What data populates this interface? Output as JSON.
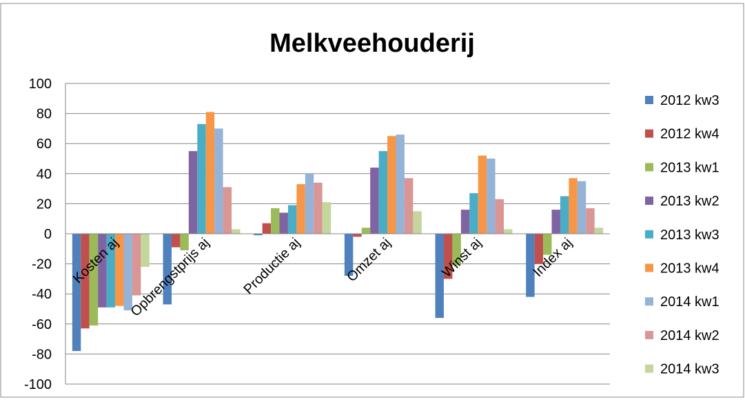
{
  "chart_data": {
    "type": "bar",
    "title": "Melkveehouderij",
    "categories": [
      "Kosten aj",
      "Opbrengstprijs aj",
      "Productie aj",
      "Omzet aj",
      "Winst aj",
      "Index aj"
    ],
    "series": [
      {
        "name": "2012 kw3",
        "color": "#4F81BD",
        "values": [
          -78,
          -47,
          -1,
          -28,
          -56,
          -42
        ]
      },
      {
        "name": "2012 kw4",
        "color": "#C0504D",
        "values": [
          -63,
          -9,
          7,
          -2,
          -30,
          -20
        ]
      },
      {
        "name": "2013 kw1",
        "color": "#9BBB59",
        "values": [
          -61,
          -11,
          17,
          4,
          -21,
          -14
        ]
      },
      {
        "name": "2013 kw2",
        "color": "#8064A2",
        "values": [
          -49,
          55,
          14,
          44,
          16,
          16
        ]
      },
      {
        "name": "2013 kw3",
        "color": "#4BACC6",
        "values": [
          -49,
          73,
          19,
          55,
          27,
          25
        ]
      },
      {
        "name": "2013 kw4",
        "color": "#F79646",
        "values": [
          -48,
          81,
          33,
          65,
          52,
          37
        ]
      },
      {
        "name": "2014 kw1",
        "color": "#95B3D7",
        "values": [
          -51,
          70,
          40,
          66,
          50,
          35
        ]
      },
      {
        "name": "2014 kw2",
        "color": "#D99694",
        "values": [
          -41,
          31,
          34,
          37,
          23,
          17
        ]
      },
      {
        "name": "2014 kw3",
        "color": "#C3D69B",
        "values": [
          -22,
          3,
          21,
          15,
          3,
          4
        ]
      }
    ],
    "ylim": [
      -100,
      100
    ],
    "yticks": [
      -100,
      -80,
      -60,
      -40,
      -20,
      0,
      20,
      40,
      60,
      80,
      100
    ],
    "grid": true,
    "legend": "right"
  }
}
